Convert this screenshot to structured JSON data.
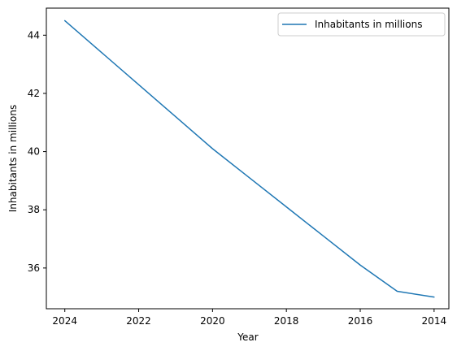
{
  "chart_data": {
    "type": "line",
    "x": [
      2024,
      2023,
      2022,
      2021,
      2020,
      2019,
      2018,
      2017,
      2016,
      2015,
      2014
    ],
    "series": [
      {
        "name": "Inhabitants in millions",
        "color": "#1f77b4",
        "values": [
          44.5,
          43.4,
          42.3,
          41.2,
          40.1,
          39.1,
          38.1,
          37.1,
          36.1,
          35.2,
          35.0
        ]
      }
    ],
    "xlabel": "Year",
    "ylabel": "Inhabitants in millions",
    "xlim": [
      2024.5,
      2013.6
    ],
    "ylim": [
      34.6,
      44.93
    ],
    "x_ticks": [
      2024,
      2022,
      2020,
      2018,
      2016,
      2014
    ],
    "y_ticks": [
      36,
      38,
      40,
      42,
      44
    ],
    "x_axis_reversed": true,
    "grid": false,
    "legend_position": "top-right"
  }
}
